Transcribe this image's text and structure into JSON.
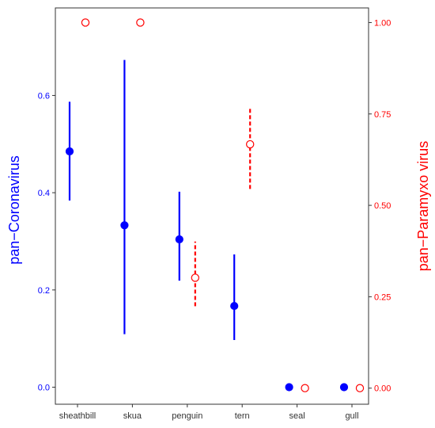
{
  "chart_data": {
    "type": "scatter",
    "categories": [
      "sheathbill",
      "skua",
      "penguin",
      "tern",
      "seal",
      "gull"
    ],
    "left_axis": {
      "label": "pan−Coronavirus",
      "ylim": [
        -0.035,
        0.78
      ],
      "ticks": [
        0.0,
        0.2,
        0.4,
        0.6
      ],
      "tick_labels": [
        "0.0",
        "0.2",
        "0.4",
        "0.6"
      ],
      "color": "#0000ff"
    },
    "right_axis": {
      "label": "pan−Paramyxo virus",
      "ylim": [
        -0.044,
        1.04
      ],
      "ticks": [
        0.0,
        0.25,
        0.5,
        0.75,
        1.0
      ],
      "tick_labels": [
        "0.00",
        "0.25",
        "0.50",
        "0.75",
        "1.00"
      ],
      "color": "#ff0000"
    },
    "series": [
      {
        "name": "pan−Coronavirus",
        "axis": "left",
        "marker": "filled-circle",
        "errorbar": "solid",
        "color": "#0000ff",
        "points": [
          {
            "category": "sheathbill",
            "y": 0.485,
            "low": 0.384,
            "high": 0.587
          },
          {
            "category": "skua",
            "y": 0.333,
            "low": 0.109,
            "high": 0.673
          },
          {
            "category": "penguin",
            "y": 0.304,
            "low": 0.219,
            "high": 0.402
          },
          {
            "category": "tern",
            "y": 0.167,
            "low": 0.097,
            "high": 0.273
          },
          {
            "category": "seal",
            "y": 0.0
          },
          {
            "category": "gull",
            "y": 0.0
          }
        ]
      },
      {
        "name": "pan−Paramyxo virus",
        "axis": "right",
        "marker": "open-circle",
        "errorbar": "dashed",
        "color": "#ff0000",
        "points": [
          {
            "category": "sheathbill",
            "y": 1.0
          },
          {
            "category": "skua",
            "y": 1.0
          },
          {
            "category": "penguin",
            "y": 0.302,
            "low": 0.224,
            "high": 0.401
          },
          {
            "category": "tern",
            "y": 0.667,
            "low": 0.545,
            "high": 0.767
          },
          {
            "category": "seal",
            "y": 0.0
          },
          {
            "category": "gull",
            "y": 0.0
          }
        ]
      }
    ],
    "grid": false,
    "legend": "none"
  }
}
